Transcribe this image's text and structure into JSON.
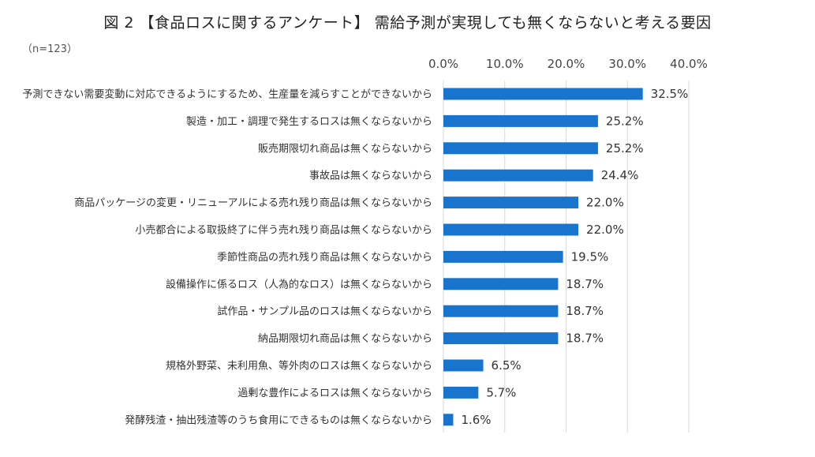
{
  "chart_data": {
    "type": "bar",
    "orientation": "horizontal",
    "title": "図 2 【食品ロスに関するアンケート】 需給予測が実現しても無くならないと考える要因",
    "note": "（n=123）",
    "categories": [
      "予測できない需要変動に対応できるようにするため、生産量を減らすことができないから",
      "製造・加工・調理で発生するロスは無くならないから",
      "販売期限切れ商品は無くならないから",
      "事故品は無くならないから",
      "商品パッケージの変更・リニューアルによる売れ残り商品は無くならないから",
      "小売都合による取扱終了に伴う売れ残り商品は無くならないから",
      "季節性商品の売れ残り商品は無くならないから",
      "設備操作に係るロス（人為的なロス）は無くならないから",
      "試作品・サンプル品のロスは無くならないから",
      "納品期限切れ商品は無くならないから",
      "規格外野菜、未利用魚、等外肉のロスは無くならないから",
      "過剰な豊作によるロスは無くならないから",
      "発酵残渣・抽出残渣等のうち食用にできるものは無くならないから"
    ],
    "values": [
      32.5,
      25.2,
      25.2,
      24.4,
      22.0,
      22.0,
      19.5,
      18.7,
      18.7,
      18.7,
      6.5,
      5.7,
      1.6
    ],
    "value_labels": [
      "32.5%",
      "25.2%",
      "25.2%",
      "24.4%",
      "22.0%",
      "22.0%",
      "19.5%",
      "18.7%",
      "18.7%",
      "18.7%",
      "6.5%",
      "5.7%",
      "1.6%"
    ],
    "x_ticks": [
      "0.0%",
      "10.0%",
      "20.0%",
      "30.0%",
      "40.0%"
    ],
    "xlim": [
      0,
      40
    ],
    "axis_position": "top",
    "grid": true,
    "bar_color": "#1874CD"
  }
}
